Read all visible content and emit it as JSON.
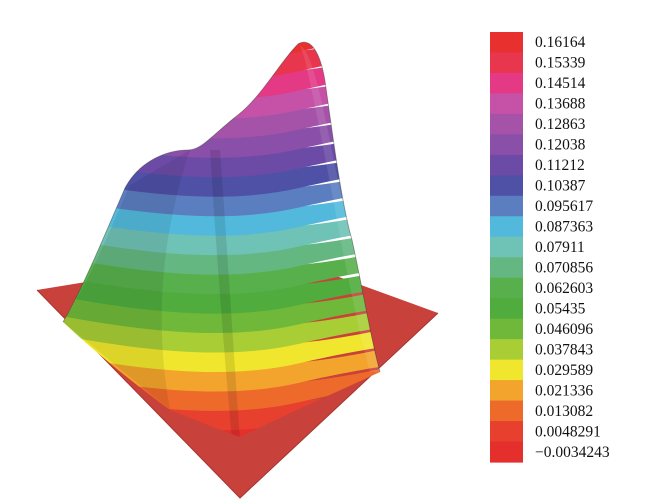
{
  "chart_data": {
    "type": "surface",
    "colorbar": {
      "values": [
        "0.16164",
        "0.15339",
        "0.14514",
        "0.13688",
        "0.12863",
        "0.12038",
        "0.11212",
        "0.10387",
        "0.095617",
        "0.087363",
        "0.07911",
        "0.070856",
        "0.062603",
        "0.05435",
        "0.046096",
        "0.037843",
        "0.029589",
        "0.021336",
        "0.013082",
        "0.0048291",
        "−0.0034243"
      ],
      "colors": [
        "#e8312f",
        "#e8364f",
        "#e43a86",
        "#c552a6",
        "#a553a8",
        "#8a4fa8",
        "#6c4ba6",
        "#4f51a6",
        "#5b7ec0",
        "#53b9dc",
        "#6fc2b6",
        "#64b781",
        "#58b04c",
        "#4fac3d",
        "#6fb83a",
        "#a8cd35",
        "#f0e62d",
        "#f2a42c",
        "#ee6a2b",
        "#e8402e",
        "#e42f2d"
      ]
    },
    "base_plane_color": "#c8413a"
  }
}
